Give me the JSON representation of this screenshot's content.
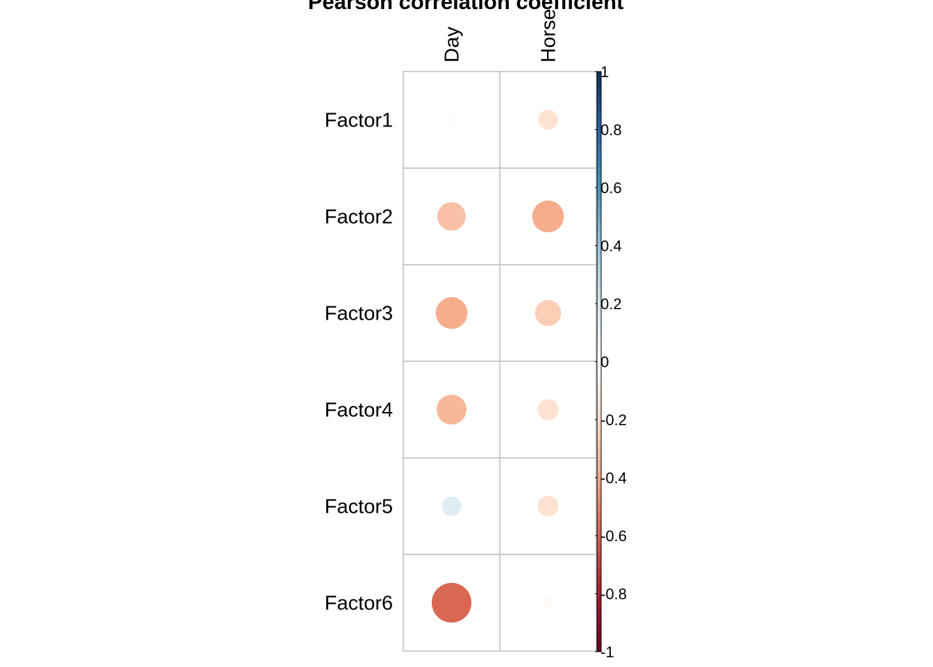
{
  "chart_data": {
    "type": "heatmap",
    "style": "circles",
    "title": "Pearson correlation coefficient",
    "columns": [
      "Day",
      "Horse"
    ],
    "rows": [
      "Factor1",
      "Factor2",
      "Factor3",
      "Factor4",
      "Factor5",
      "Factor6"
    ],
    "values": [
      [
        -0.02,
        -0.15
      ],
      [
        -0.3,
        -0.37
      ],
      [
        -0.37,
        -0.25
      ],
      [
        -0.33,
        -0.16
      ],
      [
        0.14,
        -0.16
      ],
      [
        -0.58,
        -0.04
      ]
    ],
    "colorbar": {
      "range": [
        -1,
        1
      ],
      "ticks": [
        "-1",
        "-0.8",
        "-0.6",
        "-0.4",
        "-0.2",
        "0",
        "0.2",
        "0.4",
        "0.6",
        "0.8",
        "1"
      ],
      "colors": [
        "#67001F",
        "#B2182B",
        "#D6604D",
        "#F4A582",
        "#FDDBC7",
        "#FFFFFF",
        "#D1E5F0",
        "#92C5DE",
        "#4393C3",
        "#2166AC",
        "#053061"
      ]
    },
    "grid": true
  }
}
